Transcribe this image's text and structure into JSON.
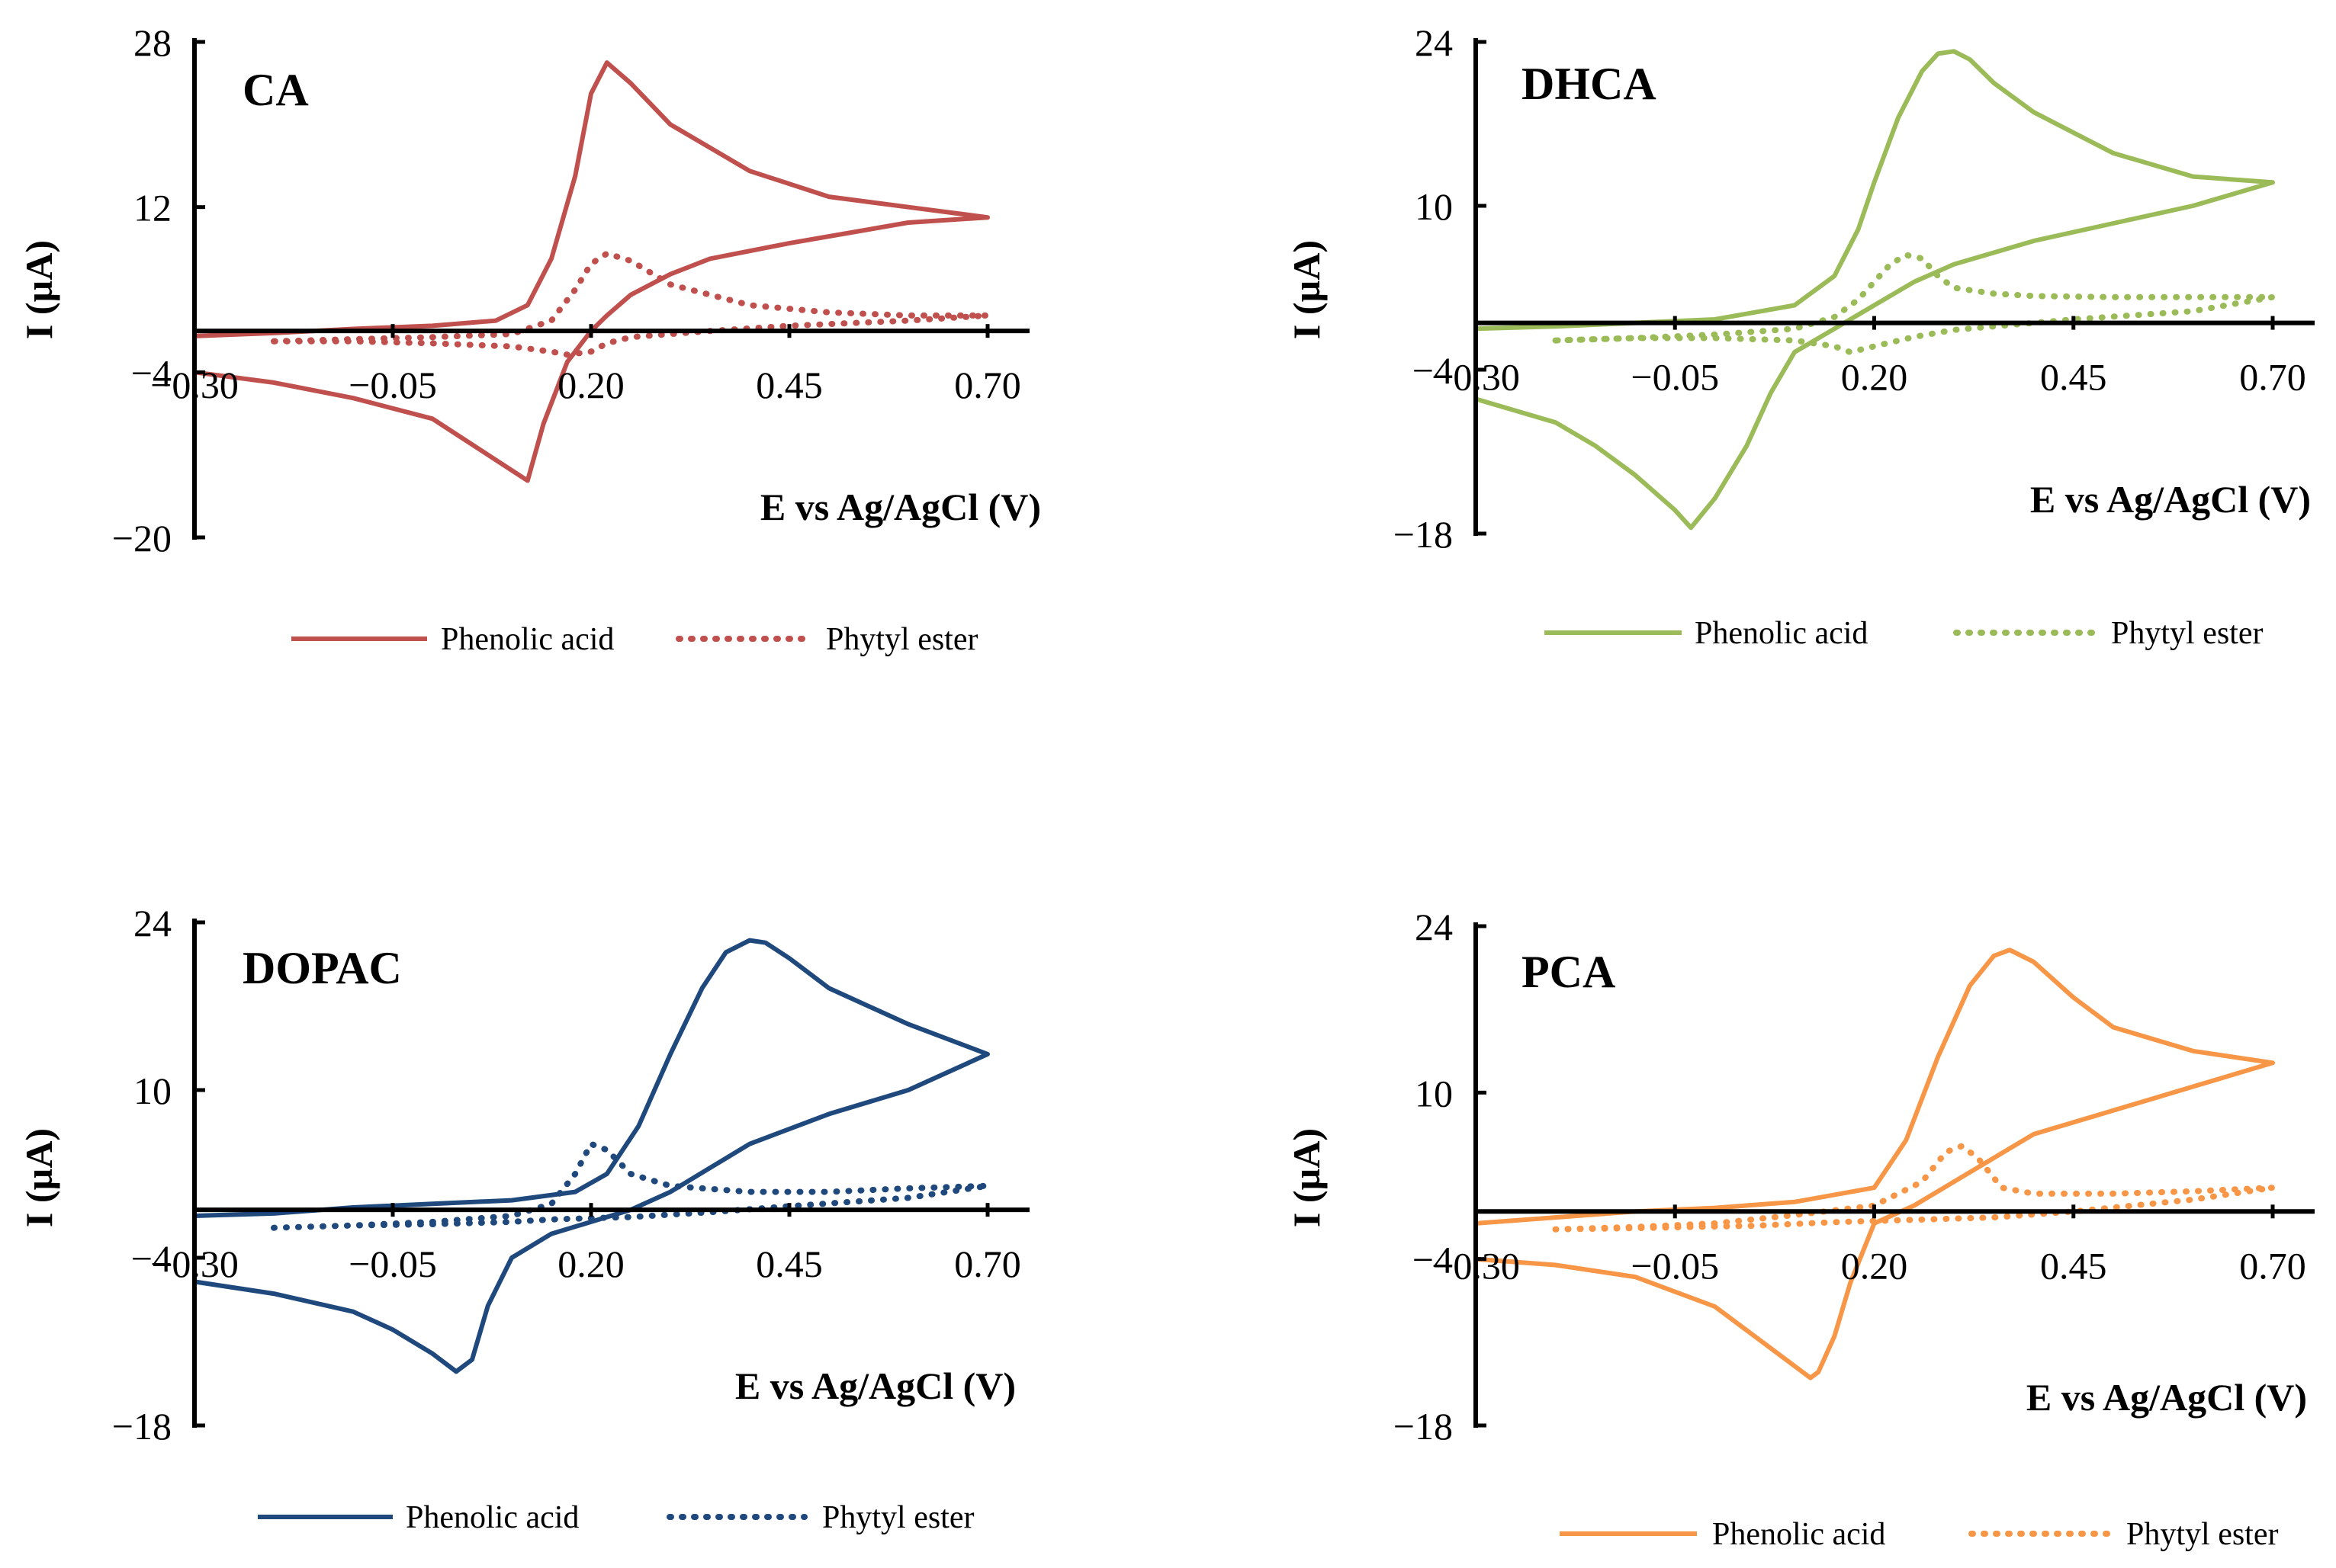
{
  "chart_data": [
    {
      "type": "line",
      "title": "CA",
      "xlabel": "E vs Ag/AgCl (V)",
      "ylabel": "I (µA)",
      "xlim": [
        -0.3,
        0.7
      ],
      "ylim": [
        -20,
        28
      ],
      "xticks": [
        "-0.30",
        "-0.05",
        "0.20",
        "0.45",
        "0.70"
      ],
      "yticks": [
        "28",
        "12",
        "-4",
        "-20"
      ],
      "ytick_values": [
        28,
        12,
        -4,
        -20
      ],
      "color": "#c0504d",
      "legend": [
        "Phenolic acid",
        "Phytyl ester"
      ],
      "series": [
        {
          "name": "Phenolic acid",
          "style": "solid",
          "x": [
            -0.3,
            -0.2,
            -0.1,
            0.0,
            0.08,
            0.12,
            0.15,
            0.18,
            0.2,
            0.22,
            0.25,
            0.3,
            0.4,
            0.5,
            0.6,
            0.7,
            0.6,
            0.45,
            0.35,
            0.3,
            0.25,
            0.22,
            0.2,
            0.17,
            0.14,
            0.12,
            0.1,
            0.05,
            0.0,
            -0.1,
            -0.2,
            -0.3
          ],
          "y": [
            -0.5,
            -0.2,
            0.2,
            0.5,
            1.0,
            2.5,
            7.0,
            15.0,
            23.0,
            26.0,
            24.0,
            20.0,
            15.5,
            13.0,
            12.0,
            11.0,
            10.5,
            8.5,
            7.0,
            5.5,
            3.5,
            1.5,
            0.0,
            -3.0,
            -9.0,
            -14.5,
            -13.5,
            -11.0,
            -8.5,
            -6.5,
            -5.0,
            -4.0
          ]
        },
        {
          "name": "Phytyl ester",
          "style": "dotted",
          "x": [
            -0.2,
            -0.1,
            0.0,
            0.1,
            0.15,
            0.18,
            0.2,
            0.22,
            0.25,
            0.3,
            0.4,
            0.5,
            0.6,
            0.7,
            0.6,
            0.45,
            0.35,
            0.3,
            0.25,
            0.22,
            0.2,
            0.17,
            0.15,
            0.1,
            0.0,
            -0.1,
            -0.2
          ],
          "y": [
            -1.0,
            -0.8,
            -0.6,
            -0.3,
            1.0,
            4.0,
            6.5,
            7.5,
            6.8,
            4.5,
            2.5,
            1.8,
            1.5,
            1.5,
            1.0,
            0.5,
            0.0,
            -0.3,
            -0.6,
            -1.2,
            -2.0,
            -2.3,
            -2.0,
            -1.5,
            -1.2,
            -1.0,
            -1.0
          ]
        }
      ]
    },
    {
      "type": "line",
      "title": "DHCA",
      "xlabel": "E vs Ag/AgCl (V)",
      "ylabel": "I (µA)",
      "xlim": [
        -0.3,
        0.7
      ],
      "ylim": [
        -18,
        24
      ],
      "xticks": [
        "-0.30",
        "-0.05",
        "0.20",
        "0.45",
        "0.70"
      ],
      "yticks": [
        "24",
        "10",
        "-4",
        "-18"
      ],
      "ytick_values": [
        24,
        10,
        -4,
        -18
      ],
      "color": "#9bbb59",
      "legend": [
        "Phenolic acid",
        "Phytyl ester"
      ],
      "series": [
        {
          "name": "Phenolic acid",
          "style": "solid",
          "x": [
            -0.3,
            -0.2,
            -0.1,
            0.0,
            0.1,
            0.15,
            0.18,
            0.2,
            0.23,
            0.26,
            0.28,
            0.3,
            0.32,
            0.35,
            0.4,
            0.5,
            0.6,
            0.7,
            0.6,
            0.5,
            0.4,
            0.3,
            0.25,
            0.2,
            0.15,
            0.1,
            0.07,
            0.04,
            0.0,
            -0.03,
            -0.05,
            -0.1,
            -0.15,
            -0.2,
            -0.3
          ],
          "y": [
            -0.5,
            -0.3,
            0.0,
            0.3,
            1.5,
            4.0,
            8.0,
            12.0,
            17.5,
            21.5,
            23.0,
            23.2,
            22.5,
            20.5,
            18.0,
            14.5,
            12.5,
            12.0,
            10.0,
            8.5,
            7.0,
            5.0,
            3.5,
            1.5,
            -0.5,
            -2.5,
            -6.0,
            -10.5,
            -15.0,
            -17.5,
            -16.0,
            -13.0,
            -10.5,
            -8.5,
            -6.5
          ]
        },
        {
          "name": "Phytyl ester",
          "style": "dotted",
          "x": [
            -0.2,
            -0.1,
            0.0,
            0.1,
            0.15,
            0.18,
            0.2,
            0.22,
            0.24,
            0.26,
            0.28,
            0.3,
            0.35,
            0.4,
            0.5,
            0.6,
            0.7,
            0.6,
            0.45,
            0.35,
            0.3,
            0.25,
            0.2,
            0.17,
            0.15,
            0.1,
            0.0,
            -0.1,
            -0.2
          ],
          "y": [
            -1.5,
            -1.3,
            -1.0,
            -0.5,
            0.5,
            2.0,
            3.5,
            5.0,
            5.8,
            5.5,
            4.0,
            3.0,
            2.5,
            2.3,
            2.2,
            2.2,
            2.2,
            1.0,
            0.3,
            -0.3,
            -0.6,
            -1.2,
            -2.0,
            -2.5,
            -2.0,
            -1.5,
            -1.3,
            -1.3,
            -1.5
          ]
        }
      ]
    },
    {
      "type": "line",
      "title": "DOPAC",
      "xlabel": "E vs Ag/AgCl (V)",
      "ylabel": "I (µA)",
      "xlim": [
        -0.3,
        0.7
      ],
      "ylim": [
        -18,
        24
      ],
      "xticks": [
        "-0.30",
        "-0.05",
        "0.20",
        "0.45",
        "0.70"
      ],
      "yticks": [
        "24",
        "10",
        "-4",
        "-18"
      ],
      "ytick_values": [
        24,
        10,
        -4,
        -18
      ],
      "color": "#1f497d",
      "legend": [
        "Phenolic acid",
        "Phytyl ester"
      ],
      "series": [
        {
          "name": "Phenolic acid",
          "style": "solid",
          "x": [
            -0.3,
            -0.2,
            -0.1,
            0.0,
            0.1,
            0.18,
            0.22,
            0.26,
            0.3,
            0.34,
            0.37,
            0.4,
            0.42,
            0.45,
            0.5,
            0.6,
            0.7,
            0.6,
            0.5,
            0.4,
            0.35,
            0.3,
            0.25,
            0.2,
            0.15,
            0.1,
            0.07,
            0.05,
            0.03,
            0.0,
            -0.05,
            -0.1,
            -0.2,
            -0.3
          ],
          "y": [
            -0.5,
            -0.3,
            0.2,
            0.5,
            0.8,
            1.5,
            3.0,
            7.0,
            13.0,
            18.5,
            21.5,
            22.5,
            22.3,
            21.0,
            18.5,
            15.5,
            13.0,
            10.0,
            8.0,
            5.5,
            3.5,
            1.5,
            0.0,
            -1.0,
            -2.0,
            -4.0,
            -8.0,
            -12.5,
            -13.5,
            -12.0,
            -10.0,
            -8.5,
            -7.0,
            -6.0
          ]
        },
        {
          "name": "Phytyl ester",
          "style": "dotted",
          "x": [
            -0.2,
            -0.1,
            0.0,
            0.1,
            0.15,
            0.18,
            0.2,
            0.22,
            0.25,
            0.3,
            0.4,
            0.5,
            0.6,
            0.7,
            0.6,
            0.45,
            0.35,
            0.3,
            0.25,
            0.2,
            0.15,
            0.1,
            0.0,
            -0.1,
            -0.2
          ],
          "y": [
            -1.5,
            -1.3,
            -1.0,
            -0.5,
            0.5,
            3.0,
            5.5,
            5.0,
            3.0,
            2.0,
            1.5,
            1.5,
            1.8,
            2.0,
            1.0,
            0.3,
            -0.2,
            -0.4,
            -0.6,
            -0.7,
            -0.8,
            -1.0,
            -1.2,
            -1.3,
            -1.5
          ]
        }
      ]
    },
    {
      "type": "line",
      "title": "PCA",
      "xlabel": "E vs Ag/AgCl (V)",
      "ylabel": "I (µA)",
      "xlim": [
        -0.3,
        0.7
      ],
      "ylim": [
        -18,
        24
      ],
      "xticks": [
        "-0.30",
        "-0.05",
        "0.20",
        "0.45",
        "0.70"
      ],
      "yticks": [
        "24",
        "10",
        "-4",
        "-18"
      ],
      "ytick_values": [
        24,
        10,
        -4,
        -18
      ],
      "color": "#f79646",
      "legend": [
        "Phenolic acid",
        "Phytyl ester"
      ],
      "series": [
        {
          "name": "Phenolic acid",
          "style": "solid",
          "x": [
            -0.3,
            -0.2,
            -0.1,
            0.0,
            0.1,
            0.2,
            0.24,
            0.28,
            0.32,
            0.35,
            0.37,
            0.4,
            0.45,
            0.5,
            0.6,
            0.7,
            0.6,
            0.5,
            0.4,
            0.35,
            0.3,
            0.25,
            0.2,
            0.17,
            0.15,
            0.13,
            0.12,
            0.1,
            0.05,
            0.0,
            -0.1,
            -0.2,
            -0.3
          ],
          "y": [
            -1.0,
            -0.5,
            0.0,
            0.3,
            0.8,
            2.0,
            6.0,
            13.0,
            19.0,
            21.5,
            22.0,
            21.0,
            18.0,
            15.5,
            13.5,
            12.5,
            10.5,
            8.5,
            6.5,
            4.5,
            2.5,
            0.5,
            -1.0,
            -6.0,
            -10.5,
            -13.5,
            -14.0,
            -13.0,
            -10.5,
            -8.0,
            -5.5,
            -4.5,
            -4.0
          ]
        },
        {
          "name": "Phytyl ester",
          "style": "dotted",
          "x": [
            -0.2,
            -0.1,
            0.0,
            0.1,
            0.2,
            0.26,
            0.29,
            0.31,
            0.33,
            0.36,
            0.4,
            0.5,
            0.6,
            0.7,
            0.6,
            0.45,
            0.35,
            0.25,
            0.15,
            0.05,
            -0.1,
            -0.2
          ],
          "y": [
            -1.5,
            -1.3,
            -1.0,
            -0.3,
            0.5,
            2.5,
            5.0,
            5.5,
            4.5,
            2.0,
            1.5,
            1.5,
            1.7,
            2.0,
            1.0,
            0.0,
            -0.5,
            -0.7,
            -0.9,
            -1.2,
            -1.4,
            -1.5
          ]
        }
      ]
    }
  ]
}
